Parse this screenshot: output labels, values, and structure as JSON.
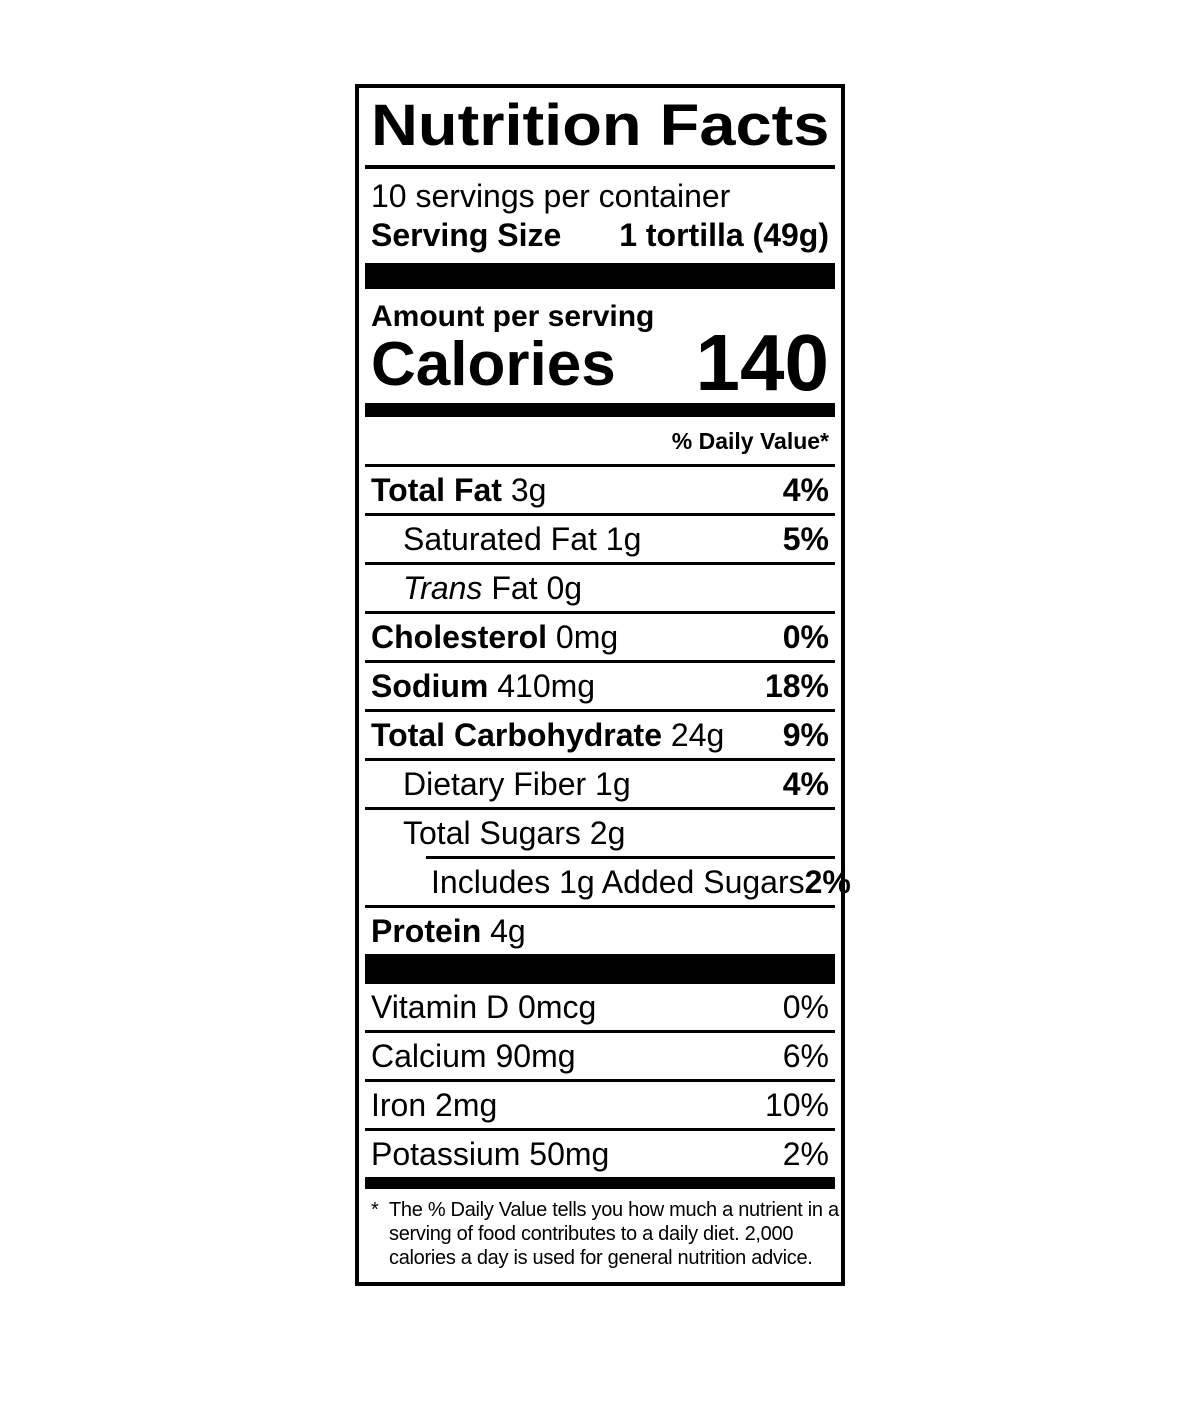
{
  "label": {
    "title": "Nutrition Facts",
    "servings_per_container": "10 servings per container",
    "serving_size_label": "Serving Size",
    "serving_size_value": "1 tortilla (49g)",
    "amount_per_serving": "Amount per serving",
    "calories_label": "Calories",
    "calories_value": "140",
    "daily_value_header": "% Daily Value*",
    "nutrients": [
      {
        "parts": [
          {
            "text": "Total Fat",
            "bold": true
          },
          {
            "text": " 3g"
          }
        ],
        "dv": "4%",
        "dv_bold": true,
        "indent": 0,
        "separator": "full"
      },
      {
        "parts": [
          {
            "text": "Saturated Fat 1g"
          }
        ],
        "dv": "5%",
        "dv_bold": true,
        "indent": 1,
        "separator": "full"
      },
      {
        "parts": [
          {
            "text": "Trans",
            "italic": true
          },
          {
            "text": " Fat 0g"
          }
        ],
        "dv": "",
        "dv_bold": false,
        "indent": 1,
        "separator": "full"
      },
      {
        "parts": [
          {
            "text": "Cholesterol",
            "bold": true
          },
          {
            "text": " 0mg"
          }
        ],
        "dv": "0%",
        "dv_bold": true,
        "indent": 0,
        "separator": "full"
      },
      {
        "parts": [
          {
            "text": "Sodium",
            "bold": true
          },
          {
            "text": " 410mg"
          }
        ],
        "dv": "18%",
        "dv_bold": true,
        "indent": 0,
        "separator": "full"
      },
      {
        "parts": [
          {
            "text": "Total Carbohydrate",
            "bold": true
          },
          {
            "text": " 24g"
          }
        ],
        "dv": "9%",
        "dv_bold": true,
        "indent": 0,
        "separator": "full"
      },
      {
        "parts": [
          {
            "text": "Dietary Fiber 1g"
          }
        ],
        "dv": "4%",
        "dv_bold": true,
        "indent": 1,
        "separator": "full"
      },
      {
        "parts": [
          {
            "text": "Total Sugars 2g"
          }
        ],
        "dv": "",
        "dv_bold": false,
        "indent": 1,
        "separator": "indented"
      },
      {
        "parts": [
          {
            "text": "Includes 1g Added Sugars"
          }
        ],
        "dv": "2%",
        "dv_bold": true,
        "indent": 2,
        "separator": "full"
      },
      {
        "parts": [
          {
            "text": "Protein",
            "bold": true
          },
          {
            "text": " 4g"
          }
        ],
        "dv": "",
        "dv_bold": false,
        "indent": 0,
        "separator": "none"
      }
    ],
    "vitamins": [
      {
        "parts": [
          {
            "text": "Vitamin D 0mcg"
          }
        ],
        "dv": "0%",
        "dv_bold": false,
        "indent": 0,
        "separator": "full"
      },
      {
        "parts": [
          {
            "text": "Calcium 90mg"
          }
        ],
        "dv": "6%",
        "dv_bold": false,
        "indent": 0,
        "separator": "full"
      },
      {
        "parts": [
          {
            "text": "Iron 2mg"
          }
        ],
        "dv": "10%",
        "dv_bold": false,
        "indent": 0,
        "separator": "full"
      },
      {
        "parts": [
          {
            "text": "Potassium 50mg"
          }
        ],
        "dv": "2%",
        "dv_bold": false,
        "indent": 0,
        "separator": "none"
      }
    ],
    "footnote_marker": "*",
    "footnote_lines": [
      "The % Daily Value tells you how much a nutrient in a",
      "serving of food contributes to a daily diet. 2,000",
      "calories a day is used for general nutrition advice."
    ],
    "colors": {
      "ink": "#000000",
      "background": "#ffffff"
    }
  }
}
